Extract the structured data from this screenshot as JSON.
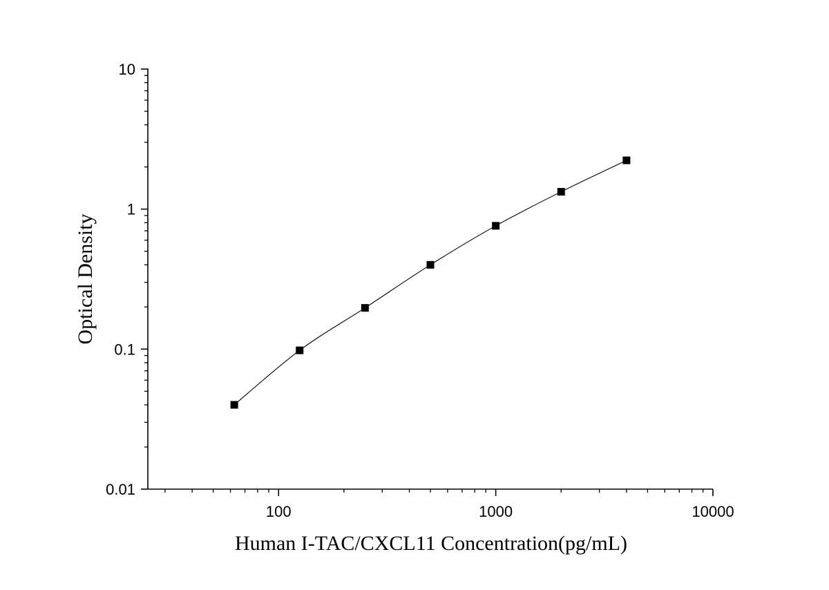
{
  "chart_data": {
    "type": "scatter",
    "title": "",
    "xlabel": "Human I-TAC/CXCL11 Concentration(pg/mL)",
    "ylabel": "Optical Density",
    "xscale": "log",
    "yscale": "log",
    "xlim": [
      25,
      10000
    ],
    "ylim": [
      0.01,
      10
    ],
    "x_ticks": [
      {
        "value": 100,
        "label": "100"
      },
      {
        "value": 1000,
        "label": "1000"
      },
      {
        "value": 10000,
        "label": "10000"
      }
    ],
    "y_ticks": [
      {
        "value": 0.01,
        "label": "0.01"
      },
      {
        "value": 0.1,
        "label": "0.1"
      },
      {
        "value": 1,
        "label": "1"
      },
      {
        "value": 10,
        "label": "10"
      }
    ],
    "grid": false,
    "legend": "none",
    "series": [
      {
        "marker": "square",
        "color": "#000000",
        "x": [
          62.5,
          125,
          250,
          500,
          1000,
          2000,
          4000
        ],
        "y": [
          0.04,
          0.098,
          0.197,
          0.4,
          0.76,
          1.33,
          2.23
        ]
      }
    ],
    "fit_curve": {
      "type": "smooth",
      "color": "#000000"
    }
  }
}
